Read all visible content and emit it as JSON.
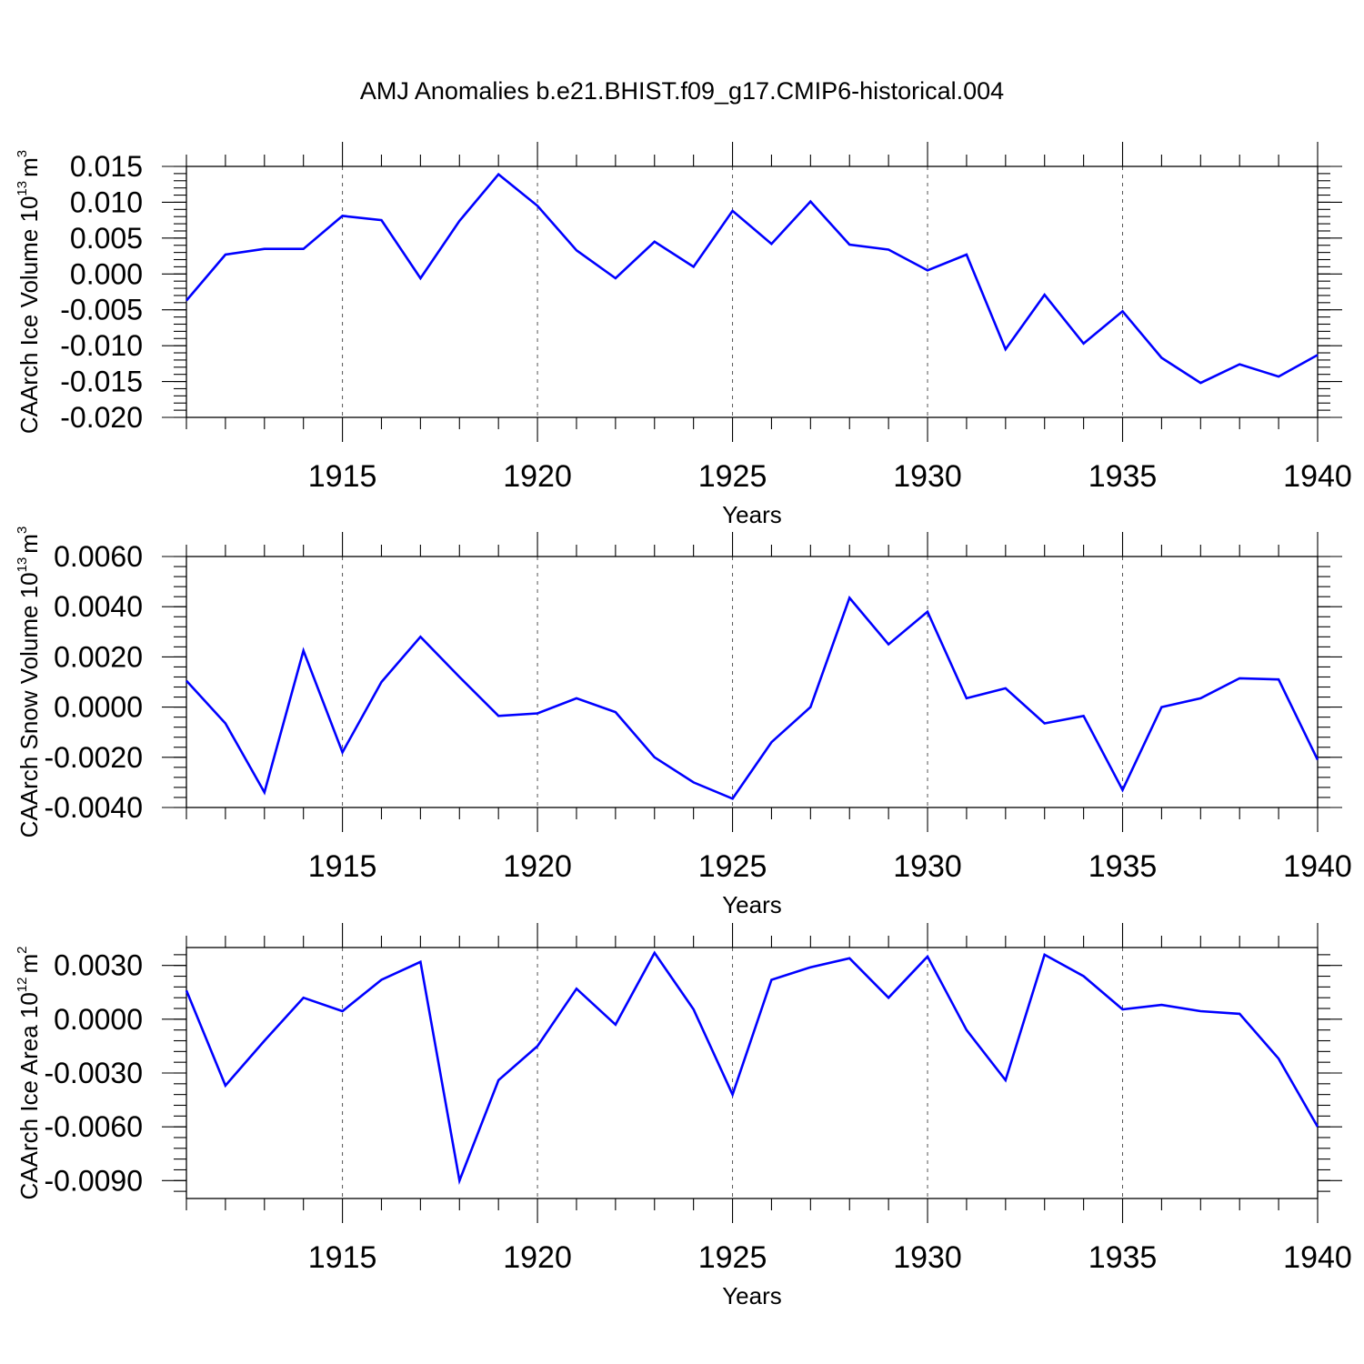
{
  "figure": {
    "title": "AMJ Anomalies b.e21.BHIST.f09_g17.CMIP6-historical.004"
  },
  "chart_data": [
    {
      "type": "line",
      "title": "",
      "xlabel": "Years",
      "ylabel": "CAArch Ice Volume 10",
      "ylabel_sup": "13",
      "ylabel_unit": "m",
      "ylabel_unit_sup": "3",
      "xlim": [
        1911,
        1940
      ],
      "ylim": [
        -0.02,
        0.015
      ],
      "yticks": [
        -0.02,
        -0.015,
        -0.01,
        -0.005,
        0.0,
        0.005,
        0.01,
        0.015
      ],
      "ytick_labels": [
        "-0.020",
        "-0.015",
        "-0.010",
        "-0.005",
        "0.000",
        "0.005",
        "0.010",
        "0.015"
      ],
      "xticks": [
        1915,
        1920,
        1925,
        1930,
        1935,
        1940
      ],
      "xtick_labels": [
        "1915",
        "1920",
        "1925",
        "1930",
        "1935",
        "1940"
      ],
      "grid_x": true,
      "series": [
        {
          "name": "CAArch Ice Volume",
          "color": "#0000ff",
          "x": [
            1911,
            1912,
            1913,
            1914,
            1915,
            1916,
            1917,
            1918,
            1919,
            1920,
            1921,
            1922,
            1923,
            1924,
            1925,
            1926,
            1927,
            1928,
            1929,
            1930,
            1931,
            1932,
            1933,
            1934,
            1935,
            1936,
            1937,
            1938,
            1939,
            1940
          ],
          "values": [
            -0.0037,
            0.0027,
            0.0035,
            0.0035,
            0.0081,
            0.0075,
            -0.0006,
            0.0074,
            0.0139,
            0.0095,
            0.0033,
            -0.0006,
            0.0045,
            0.001,
            0.0088,
            0.0042,
            0.0101,
            0.0041,
            0.0034,
            0.0005,
            0.0027,
            -0.0105,
            -0.0029,
            -0.0097,
            -0.0052,
            -0.0117,
            -0.0152,
            -0.0126,
            -0.0143,
            -0.0113
          ]
        }
      ]
    },
    {
      "type": "line",
      "title": "",
      "xlabel": "Years",
      "ylabel": "CAArch Snow Volume 10",
      "ylabel_sup": "13",
      "ylabel_unit": "m",
      "ylabel_unit_sup": "3",
      "xlim": [
        1911,
        1940
      ],
      "ylim": [
        -0.004,
        0.006
      ],
      "yticks": [
        -0.004,
        -0.002,
        0.0,
        0.002,
        0.004,
        0.006
      ],
      "ytick_labels": [
        "-0.0040",
        "-0.0020",
        "0.0000",
        "0.0020",
        "0.0040",
        "0.0060"
      ],
      "xticks": [
        1915,
        1920,
        1925,
        1930,
        1935,
        1940
      ],
      "xtick_labels": [
        "1915",
        "1920",
        "1925",
        "1930",
        "1935",
        "1940"
      ],
      "grid_x": true,
      "series": [
        {
          "name": "CAArch Snow Volume",
          "color": "#0000ff",
          "x": [
            1911,
            1912,
            1913,
            1914,
            1915,
            1916,
            1917,
            1918,
            1919,
            1920,
            1921,
            1922,
            1923,
            1924,
            1925,
            1926,
            1927,
            1928,
            1929,
            1930,
            1931,
            1932,
            1933,
            1934,
            1935,
            1936,
            1937,
            1938,
            1939,
            1940
          ],
          "values": [
            0.00105,
            -0.00065,
            -0.0034,
            0.00225,
            -0.0018,
            0.001,
            0.0028,
            0.0012,
            -0.00035,
            -0.00025,
            0.00035,
            -0.0002,
            -0.002,
            -0.003,
            -0.00365,
            -0.0014,
            0.0,
            0.00435,
            0.0025,
            0.0038,
            0.00035,
            0.00075,
            -0.00065,
            -0.00035,
            -0.0033,
            0.0,
            0.00035,
            0.00115,
            0.0011,
            -0.0021
          ]
        }
      ]
    },
    {
      "type": "line",
      "title": "",
      "xlabel": "Years",
      "ylabel": "CAArch Ice Area 10",
      "ylabel_sup": "12",
      "ylabel_unit": "m",
      "ylabel_unit_sup": "2",
      "xlim": [
        1911,
        1940
      ],
      "ylim": [
        -0.01,
        0.004
      ],
      "yticks": [
        -0.009,
        -0.006,
        -0.003,
        0.0,
        0.003
      ],
      "ytick_labels": [
        "-0.0090",
        "-0.0060",
        "-0.0030",
        "0.0000",
        "0.0030"
      ],
      "xticks": [
        1915,
        1920,
        1925,
        1930,
        1935,
        1940
      ],
      "xtick_labels": [
        "1915",
        "1920",
        "1925",
        "1930",
        "1935",
        "1940"
      ],
      "grid_x": true,
      "series": [
        {
          "name": "CAArch Ice Area",
          "color": "#0000ff",
          "x": [
            1911,
            1912,
            1913,
            1914,
            1915,
            1916,
            1917,
            1918,
            1919,
            1920,
            1921,
            1922,
            1923,
            1924,
            1925,
            1926,
            1927,
            1928,
            1929,
            1930,
            1931,
            1932,
            1933,
            1934,
            1935,
            1936,
            1937,
            1938,
            1939,
            1940
          ],
          "values": [
            0.0016,
            -0.0037,
            -0.0012,
            0.0012,
            0.00045,
            0.0022,
            0.0032,
            -0.009,
            -0.0034,
            -0.0015,
            0.0017,
            -0.0003,
            0.0037,
            0.00055,
            -0.0042,
            0.0022,
            0.0029,
            0.0034,
            0.0012,
            0.0035,
            -0.0006,
            -0.0034,
            0.0036,
            0.0024,
            0.00055,
            0.0008,
            0.00045,
            0.0003,
            -0.0022,
            -0.006
          ]
        }
      ]
    }
  ]
}
